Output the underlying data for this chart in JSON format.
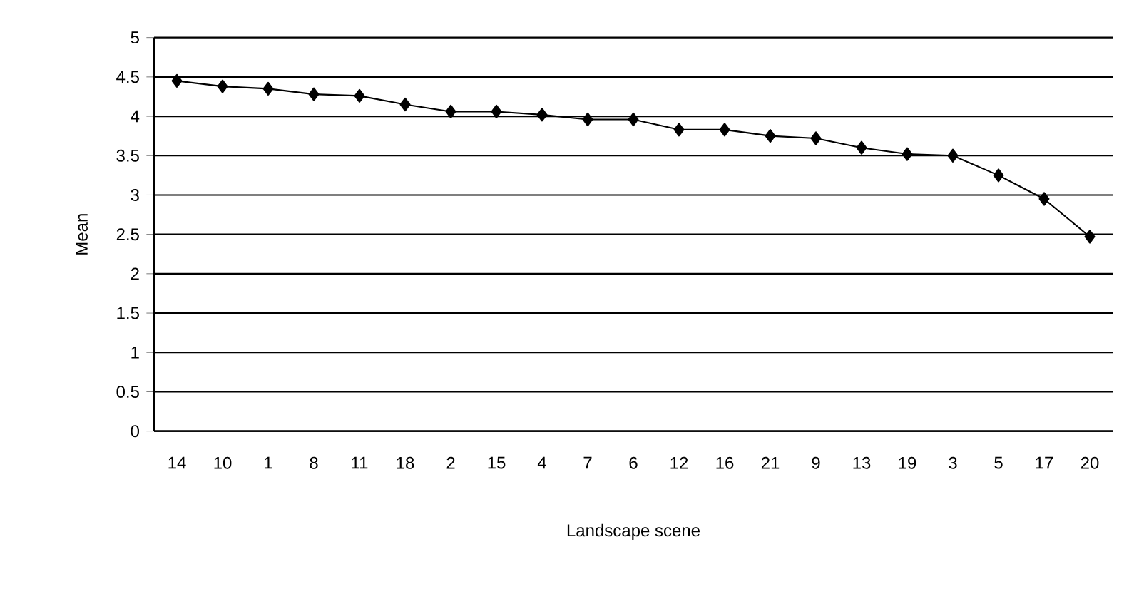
{
  "chart_data": {
    "type": "line",
    "xlabel": "Landscape scene",
    "ylabel": "Mean",
    "categories": [
      "14",
      "10",
      "1",
      "8",
      "11",
      "18",
      "2",
      "15",
      "4",
      "7",
      "6",
      "12",
      "16",
      "21",
      "9",
      "13",
      "19",
      "3",
      "5",
      "17",
      "20"
    ],
    "series": [
      {
        "color": "#000000",
        "values": [
          4.45,
          4.38,
          4.35,
          4.28,
          4.26,
          4.15,
          4.06,
          4.06,
          4.02,
          3.96,
          3.96,
          3.83,
          3.83,
          3.75,
          3.72,
          3.6,
          3.52,
          3.5,
          3.25,
          2.95,
          2.47
        ]
      }
    ],
    "ylim": [
      0,
      5
    ],
    "yticks": [
      0,
      0.5,
      1,
      1.5,
      2,
      2.5,
      3,
      3.5,
      4,
      4.5,
      5
    ],
    "grid": "y",
    "marker": "diamond",
    "line_style": "solid"
  }
}
